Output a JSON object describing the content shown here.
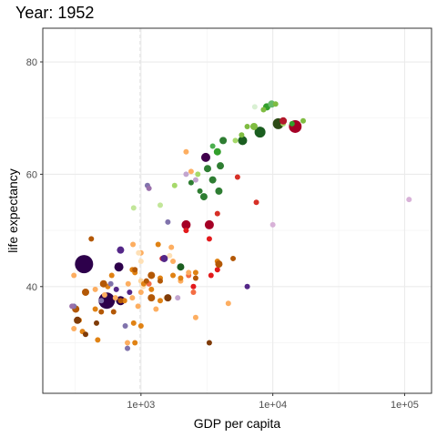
{
  "chart_data": {
    "type": "scatter",
    "title": "Year: 1952",
    "xlabel": "GDP per capita",
    "ylabel": "life expectancy",
    "x_scale": "log10",
    "xlim": [
      180,
      160000
    ],
    "ylim": [
      21,
      86
    ],
    "x_ticks": [
      {
        "value": 1000,
        "label": "1e+03"
      },
      {
        "value": 10000,
        "label": "1e+04"
      },
      {
        "value": 100000,
        "label": "1e+05"
      }
    ],
    "x_minor_ticks": [
      316,
      3162,
      31623
    ],
    "y_ticks": [
      {
        "value": 40,
        "label": "40"
      },
      {
        "value": 60,
        "label": "60"
      },
      {
        "value": 80,
        "label": "80"
      }
    ],
    "y_minor_ticks": [
      30,
      50,
      70
    ],
    "grid": true,
    "legend": "none",
    "colors": {
      "panel_border": "#333333",
      "grid_major": "#ebebeb",
      "grid_minor": "#f2f2f2",
      "cursor_line": "#e0e0e0"
    },
    "points": [
      {
        "x": 370,
        "y": 44.0,
        "size": 10,
        "color": "#2d004b"
      },
      {
        "x": 550,
        "y": 37.5,
        "size": 9,
        "color": "#2d004b"
      },
      {
        "x": 680,
        "y": 43.5,
        "size": 5,
        "color": "#2d004b"
      },
      {
        "x": 700,
        "y": 37.5,
        "size": 5,
        "color": "#2d004b"
      },
      {
        "x": 3100,
        "y": 63.0,
        "size": 5,
        "color": "#40004b"
      },
      {
        "x": 14800,
        "y": 68.5,
        "size": 7,
        "color": "#a50026"
      },
      {
        "x": 2200,
        "y": 51.0,
        "size": 5,
        "color": "#a50026"
      },
      {
        "x": 3300,
        "y": 51.0,
        "size": 5,
        "color": "#a50026"
      },
      {
        "x": 11000,
        "y": 69.0,
        "size": 6,
        "color": "#2d4a15"
      },
      {
        "x": 8000,
        "y": 67.5,
        "size": 6,
        "color": "#1b5e20"
      },
      {
        "x": 5900,
        "y": 66.0,
        "size": 5,
        "color": "#1b5e20"
      },
      {
        "x": 2000,
        "y": 43.5,
        "size": 4,
        "color": "#1b5e20"
      },
      {
        "x": 3800,
        "y": 64.0,
        "size": 4,
        "color": "#33a02c"
      },
      {
        "x": 4200,
        "y": 66.0,
        "size": 4,
        "color": "#2e7d32"
      },
      {
        "x": 4000,
        "y": 61.5,
        "size": 4,
        "color": "#2e7d32"
      },
      {
        "x": 3200,
        "y": 61.0,
        "size": 4,
        "color": "#2e7d32"
      },
      {
        "x": 3500,
        "y": 59.0,
        "size": 4,
        "color": "#2e7d32"
      },
      {
        "x": 3000,
        "y": 56.0,
        "size": 4,
        "color": "#2e7d32"
      },
      {
        "x": 3900,
        "y": 57.0,
        "size": 4,
        "color": "#2e7d32"
      },
      {
        "x": 2800,
        "y": 57.0,
        "size": 3,
        "color": "#2e7d32"
      },
      {
        "x": 2400,
        "y": 58.5,
        "size": 3,
        "color": "#2e7d32"
      },
      {
        "x": 3500,
        "y": 65.0,
        "size": 3,
        "color": "#4caf50"
      },
      {
        "x": 9000,
        "y": 72.0,
        "size": 4,
        "color": "#33a02c"
      },
      {
        "x": 9800,
        "y": 72.5,
        "size": 4,
        "color": "#66bb6a"
      },
      {
        "x": 10500,
        "y": 72.5,
        "size": 3,
        "color": "#7fbc41"
      },
      {
        "x": 8500,
        "y": 71.5,
        "size": 3,
        "color": "#7fbc41"
      },
      {
        "x": 7200,
        "y": 68.5,
        "size": 4,
        "color": "#7fbc41"
      },
      {
        "x": 6400,
        "y": 68.5,
        "size": 3,
        "color": "#7fbc41"
      },
      {
        "x": 5800,
        "y": 67.0,
        "size": 3,
        "color": "#7fbc41"
      },
      {
        "x": 5200,
        "y": 66.0,
        "size": 3,
        "color": "#a6d96a"
      },
      {
        "x": 12000,
        "y": 69.0,
        "size": 3,
        "color": "#a6d96a"
      },
      {
        "x": 17000,
        "y": 69.5,
        "size": 3,
        "color": "#7fbc41"
      },
      {
        "x": 7300,
        "y": 72.0,
        "size": 3,
        "color": "#d9f0d3"
      },
      {
        "x": 2700,
        "y": 60.0,
        "size": 3,
        "color": "#a6d96a"
      },
      {
        "x": 1800,
        "y": 58.0,
        "size": 3,
        "color": "#a6d96a"
      },
      {
        "x": 1400,
        "y": 54.5,
        "size": 3,
        "color": "#c2e699"
      },
      {
        "x": 880,
        "y": 54.0,
        "size": 3,
        "color": "#c2e699"
      },
      {
        "x": 14000,
        "y": 69.0,
        "size": 3,
        "color": "#33a02c"
      },
      {
        "x": 12000,
        "y": 69.5,
        "size": 4,
        "color": "#b2182b"
      },
      {
        "x": 5400,
        "y": 59.5,
        "size": 3,
        "color": "#d73027"
      },
      {
        "x": 3800,
        "y": 53.0,
        "size": 3,
        "color": "#d73027"
      },
      {
        "x": 7500,
        "y": 55.0,
        "size": 3,
        "color": "#d73027"
      },
      {
        "x": 2200,
        "y": 50.0,
        "size": 3,
        "color": "#e31a1c"
      },
      {
        "x": 3300,
        "y": 48.5,
        "size": 3,
        "color": "#e31a1c"
      },
      {
        "x": 1450,
        "y": 45.0,
        "size": 3,
        "color": "#d73027"
      },
      {
        "x": 3400,
        "y": 42.0,
        "size": 3,
        "color": "#e31a1c"
      },
      {
        "x": 2500,
        "y": 40.0,
        "size": 3,
        "color": "#e31a1c"
      },
      {
        "x": 3800,
        "y": 43.0,
        "size": 3,
        "color": "#e31a1c"
      },
      {
        "x": 2500,
        "y": 39.0,
        "size": 3,
        "color": "#f46d43"
      },
      {
        "x": 2300,
        "y": 42.0,
        "size": 3,
        "color": "#f46d43"
      },
      {
        "x": 1150,
        "y": 40.5,
        "size": 3,
        "color": "#f46d43"
      },
      {
        "x": 2200,
        "y": 64.0,
        "size": 3,
        "color": "#fdae61"
      },
      {
        "x": 2400,
        "y": 60.5,
        "size": 3,
        "color": "#fdae61"
      },
      {
        "x": 870,
        "y": 47.5,
        "size": 3,
        "color": "#fdae61"
      },
      {
        "x": 1000,
        "y": 46.0,
        "size": 3,
        "color": "#fdae61"
      },
      {
        "x": 1700,
        "y": 47.0,
        "size": 3,
        "color": "#fdae61"
      },
      {
        "x": 1750,
        "y": 44.5,
        "size": 3,
        "color": "#fdae61"
      },
      {
        "x": 2300,
        "y": 42.5,
        "size": 3,
        "color": "#fdae61"
      },
      {
        "x": 2000,
        "y": 41.0,
        "size": 3,
        "color": "#fdae61"
      },
      {
        "x": 800,
        "y": 40.5,
        "size": 3,
        "color": "#fdae61"
      },
      {
        "x": 530,
        "y": 38.5,
        "size": 3,
        "color": "#fdae61"
      },
      {
        "x": 640,
        "y": 38.0,
        "size": 3,
        "color": "#fdae61"
      },
      {
        "x": 860,
        "y": 38.0,
        "size": 3,
        "color": "#fdae61"
      },
      {
        "x": 1000,
        "y": 39.0,
        "size": 3,
        "color": "#fdae61"
      },
      {
        "x": 450,
        "y": 39.5,
        "size": 3,
        "color": "#fdae61"
      },
      {
        "x": 310,
        "y": 42.0,
        "size": 3,
        "color": "#fdae61"
      },
      {
        "x": 310,
        "y": 32.5,
        "size": 3,
        "color": "#fdae61"
      },
      {
        "x": 790,
        "y": 30.0,
        "size": 3,
        "color": "#fdae61"
      },
      {
        "x": 4600,
        "y": 37.0,
        "size": 3,
        "color": "#fdae61"
      },
      {
        "x": 2600,
        "y": 34.5,
        "size": 3,
        "color": "#fdae61"
      },
      {
        "x": 1300,
        "y": 36.0,
        "size": 3,
        "color": "#fdae61"
      },
      {
        "x": 950,
        "y": 36.5,
        "size": 3,
        "color": "#fdae61"
      },
      {
        "x": 1000,
        "y": 44.5,
        "size": 3,
        "color": "#fee0b6"
      },
      {
        "x": 1000,
        "y": 41.0,
        "size": 3,
        "color": "#fdd49e"
      },
      {
        "x": 1650,
        "y": 45.5,
        "size": 3,
        "color": "#fee0b6"
      },
      {
        "x": 960,
        "y": 46.0,
        "size": 3,
        "color": "#fee0b6"
      },
      {
        "x": 1040,
        "y": 40.0,
        "size": 3,
        "color": "#fee0b6"
      },
      {
        "x": 1550,
        "y": 38.0,
        "size": 3,
        "color": "#fee0b6"
      },
      {
        "x": 3800,
        "y": 44.5,
        "size": 3,
        "color": "#e08214"
      },
      {
        "x": 2600,
        "y": 42.5,
        "size": 3,
        "color": "#e08214"
      },
      {
        "x": 2000,
        "y": 41.5,
        "size": 3,
        "color": "#e08214"
      },
      {
        "x": 1750,
        "y": 42.0,
        "size": 3,
        "color": "#e08214"
      },
      {
        "x": 1400,
        "y": 41.5,
        "size": 3,
        "color": "#e08214"
      },
      {
        "x": 1200,
        "y": 39.5,
        "size": 3,
        "color": "#e08214"
      },
      {
        "x": 1050,
        "y": 40.5,
        "size": 3,
        "color": "#e08214"
      },
      {
        "x": 900,
        "y": 42.5,
        "size": 3,
        "color": "#e08214"
      },
      {
        "x": 1350,
        "y": 47.5,
        "size": 3,
        "color": "#e08214"
      },
      {
        "x": 860,
        "y": 43.0,
        "size": 3,
        "color": "#e08214"
      },
      {
        "x": 600,
        "y": 42.0,
        "size": 3,
        "color": "#e08214"
      },
      {
        "x": 560,
        "y": 40.0,
        "size": 3,
        "color": "#e08214"
      },
      {
        "x": 880,
        "y": 33.5,
        "size": 3,
        "color": "#e08214"
      },
      {
        "x": 1000,
        "y": 33.0,
        "size": 3,
        "color": "#e08214"
      },
      {
        "x": 750,
        "y": 37.5,
        "size": 3,
        "color": "#e08214"
      },
      {
        "x": 1400,
        "y": 37.5,
        "size": 3,
        "color": "#e08214"
      },
      {
        "x": 450,
        "y": 36.0,
        "size": 3,
        "color": "#e08214"
      },
      {
        "x": 340,
        "y": 34.0,
        "size": 3,
        "color": "#e08214"
      },
      {
        "x": 360,
        "y": 32.0,
        "size": 3,
        "color": "#e08214"
      },
      {
        "x": 470,
        "y": 30.5,
        "size": 3,
        "color": "#e08214"
      },
      {
        "x": 900,
        "y": 30.0,
        "size": 3,
        "color": "#e08214"
      },
      {
        "x": 420,
        "y": 48.5,
        "size": 3,
        "color": "#b35806"
      },
      {
        "x": 900,
        "y": 43.0,
        "size": 3,
        "color": "#b35806"
      },
      {
        "x": 1100,
        "y": 41.0,
        "size": 3,
        "color": "#b35806"
      },
      {
        "x": 1200,
        "y": 38.0,
        "size": 4,
        "color": "#b35806"
      },
      {
        "x": 1400,
        "y": 41.0,
        "size": 3,
        "color": "#b35806"
      },
      {
        "x": 1200,
        "y": 42.0,
        "size": 4,
        "color": "#b35806"
      },
      {
        "x": 3900,
        "y": 44.0,
        "size": 4,
        "color": "#b35806"
      },
      {
        "x": 5000,
        "y": 45.0,
        "size": 3,
        "color": "#b35806"
      },
      {
        "x": 2600,
        "y": 41.5,
        "size": 3,
        "color": "#b35806"
      },
      {
        "x": 520,
        "y": 40.5,
        "size": 4,
        "color": "#b35806"
      },
      {
        "x": 380,
        "y": 39.0,
        "size": 4,
        "color": "#b35806"
      },
      {
        "x": 700,
        "y": 37.5,
        "size": 3,
        "color": "#b35806"
      },
      {
        "x": 620,
        "y": 35.5,
        "size": 3,
        "color": "#b35806"
      },
      {
        "x": 500,
        "y": 35.5,
        "size": 3,
        "color": "#b35806"
      },
      {
        "x": 320,
        "y": 36.0,
        "size": 4,
        "color": "#b35806"
      },
      {
        "x": 330,
        "y": 34.0,
        "size": 4,
        "color": "#7f3b08"
      },
      {
        "x": 3300,
        "y": 30.0,
        "size": 3,
        "color": "#7f3b08"
      },
      {
        "x": 1600,
        "y": 38.0,
        "size": 4,
        "color": "#7f3b08"
      },
      {
        "x": 460,
        "y": 33.5,
        "size": 3,
        "color": "#7f3b08"
      },
      {
        "x": 380,
        "y": 31.5,
        "size": 3,
        "color": "#7f3b08"
      },
      {
        "x": 700,
        "y": 46.5,
        "size": 4,
        "color": "#542788"
      },
      {
        "x": 1500,
        "y": 45.0,
        "size": 4,
        "color": "#542788"
      },
      {
        "x": 820,
        "y": 39.0,
        "size": 3,
        "color": "#542788"
      },
      {
        "x": 650,
        "y": 39.5,
        "size": 3,
        "color": "#542788"
      },
      {
        "x": 6400,
        "y": 40.0,
        "size": 3,
        "color": "#542788"
      },
      {
        "x": 1600,
        "y": 51.5,
        "size": 3,
        "color": "#8073ac"
      },
      {
        "x": 500,
        "y": 37.5,
        "size": 3,
        "color": "#8073ac"
      },
      {
        "x": 310,
        "y": 36.5,
        "size": 3,
        "color": "#8073ac"
      },
      {
        "x": 790,
        "y": 29.0,
        "size": 3,
        "color": "#8073ac"
      },
      {
        "x": 760,
        "y": 33.0,
        "size": 3,
        "color": "#8073ac"
      },
      {
        "x": 590,
        "y": 40.5,
        "size": 3,
        "color": "#8073ac"
      },
      {
        "x": 1120,
        "y": 58.0,
        "size": 3,
        "color": "#8073ac"
      },
      {
        "x": 1150,
        "y": 57.5,
        "size": 3,
        "color": "#9970ab"
      },
      {
        "x": 300,
        "y": 36.5,
        "size": 3,
        "color": "#9970ab"
      },
      {
        "x": 2200,
        "y": 60.0,
        "size": 3,
        "color": "#c2a5cf"
      },
      {
        "x": 2600,
        "y": 59.0,
        "size": 3,
        "color": "#c2a5cf"
      },
      {
        "x": 1900,
        "y": 38.0,
        "size": 3,
        "color": "#c2a5cf"
      },
      {
        "x": 10000,
        "y": 51.0,
        "size": 3,
        "color": "#d8b2d8"
      },
      {
        "x": 108000,
        "y": 55.5,
        "size": 3,
        "color": "#d8b2d8"
      }
    ]
  }
}
